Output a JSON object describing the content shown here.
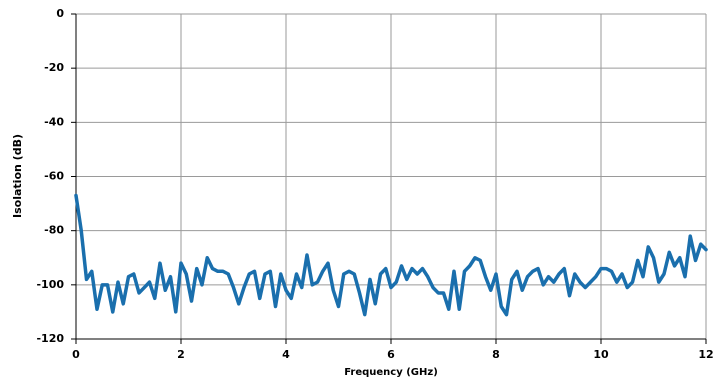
{
  "chart_data": {
    "type": "line",
    "x_label": "Frequency (GHz)",
    "y_label": "Isolation (dB)",
    "x": [
      0,
      0.1,
      0.2,
      0.3,
      0.4,
      0.5,
      0.6,
      0.7,
      0.8,
      0.9,
      1,
      1.1,
      1.2,
      1.3,
      1.4,
      1.5,
      1.6,
      1.7,
      1.8,
      1.9,
      2,
      2.1,
      2.2,
      2.3,
      2.4,
      2.5,
      2.6,
      2.7,
      2.8,
      2.9,
      3,
      3.1,
      3.2,
      3.3,
      3.4,
      3.5,
      3.6,
      3.7,
      3.8,
      3.9,
      4,
      4.1,
      4.2,
      4.3,
      4.4,
      4.5,
      4.6,
      4.7,
      4.8,
      4.9,
      5,
      5.1,
      5.2,
      5.3,
      5.4,
      5.5,
      5.6,
      5.7,
      5.8,
      5.9,
      6,
      6.1,
      6.2,
      6.3,
      6.4,
      6.5,
      6.6,
      6.7,
      6.8,
      6.9,
      7,
      7.1,
      7.2,
      7.3,
      7.4,
      7.5,
      7.6,
      7.7,
      7.8,
      7.9,
      8,
      8.1,
      8.2,
      8.3,
      8.4,
      8.5,
      8.6,
      8.7,
      8.8,
      8.9,
      9,
      9.1,
      9.2,
      9.3,
      9.4,
      9.5,
      9.6,
      9.7,
      9.8,
      9.9,
      10,
      10.1,
      10.2,
      10.3,
      10.4,
      10.5,
      10.6,
      10.7,
      10.8,
      10.9,
      11,
      11.1,
      11.2,
      11.3,
      11.4,
      11.5,
      11.6,
      11.7,
      11.8,
      11.9,
      12
    ],
    "series": [
      {
        "name": "Isolation",
        "color": "#1a6fad",
        "values": [
          -67,
          -80,
          -98,
          -95,
          -109,
          -100,
          -100,
          -110,
          -99,
          -107,
          -97,
          -96,
          -103,
          -101,
          -99,
          -105,
          -92,
          -102,
          -97,
          -110,
          -92,
          -96,
          -106,
          -94,
          -100,
          -90,
          -94,
          -95,
          -95,
          -96,
          -101,
          -107,
          -101,
          -96,
          -95,
          -105,
          -96,
          -95,
          -108,
          -96,
          -102,
          -105,
          -96,
          -101,
          -89,
          -100,
          -99,
          -95,
          -92,
          -102,
          -108,
          -96,
          -95,
          -96,
          -103,
          -111,
          -98,
          -107,
          -96,
          -94,
          -101,
          -99,
          -93,
          -98,
          -94,
          -96,
          -94,
          -97,
          -101,
          -103,
          -103,
          -109,
          -95,
          -109,
          -95,
          -93,
          -90,
          -91,
          -97,
          -102,
          -96,
          -108,
          -111,
          -98,
          -95,
          -102,
          -97,
          -95,
          -94,
          -100,
          -97,
          -99,
          -96,
          -94,
          -104,
          -96,
          -99,
          -101,
          -99,
          -97,
          -94,
          -94,
          -95,
          -99,
          -96,
          -101,
          -99,
          -91,
          -97,
          -86,
          -90,
          -99,
          -96,
          -88,
          -93,
          -90,
          -97,
          -82,
          -91,
          -85,
          -87
        ]
      }
    ],
    "xlim": [
      0,
      12
    ],
    "xticks": [
      0,
      2,
      4,
      6,
      8,
      10,
      12
    ],
    "ylim": [
      -120,
      0
    ],
    "yticks": [
      -120,
      -100,
      -80,
      -60,
      -40,
      -20,
      0
    ],
    "grid": true
  }
}
